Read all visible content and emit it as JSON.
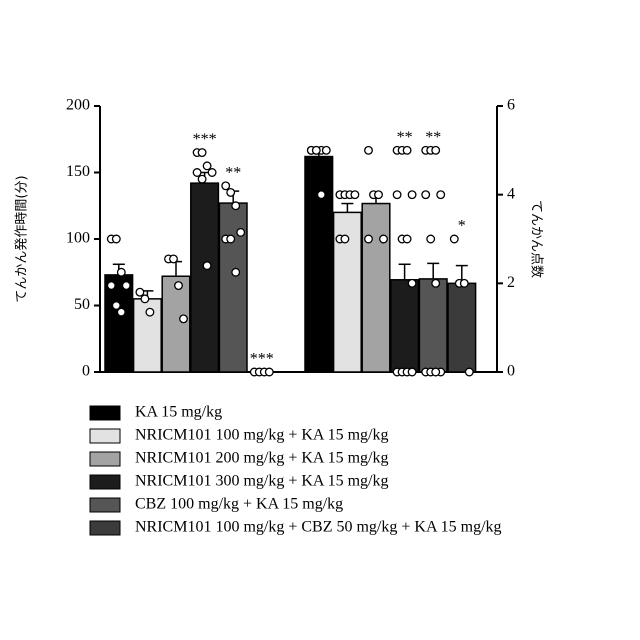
{
  "chart_data": {
    "type": "bar",
    "ylabel": "てんかん発作時間(分)",
    "y2label": "てんかん点数",
    "categories": [
      null,
      null
    ],
    "axes": [
      "y",
      "y2"
    ],
    "ylim": [
      0,
      200
    ],
    "yticks": [
      0,
      50,
      100,
      150,
      200
    ],
    "y2lim": [
      0,
      6
    ],
    "y2ticks": [
      0,
      2,
      4,
      6
    ],
    "series": [
      {
        "name": "KA 15 mg/kg",
        "color": "#000000",
        "values": [
          73,
          4.86
        ],
        "errors": [
          8,
          0.1
        ],
        "annotations": [
          null,
          null
        ],
        "points": [
          [
            100,
            100,
            75,
            65,
            65,
            50,
            45
          ],
          [
            5,
            5,
            5,
            5,
            5,
            5,
            4
          ]
        ]
      },
      {
        "name": "NRICM101 100 mg/kg + KA 15 mg/kg",
        "color": "#e2e2e2",
        "values": [
          55,
          3.6
        ],
        "errors": [
          6,
          0.2
        ],
        "annotations": [
          null,
          null
        ],
        "points": [
          [
            60,
            55,
            45
          ],
          [
            4,
            4,
            4,
            4,
            3,
            3
          ]
        ]
      },
      {
        "name": "NRICM101 200 mg/kg + KA 15 mg/kg",
        "color": "#a3a3a3",
        "values": [
          72,
          3.8
        ],
        "errors": [
          11,
          0.2
        ],
        "annotations": [
          null,
          null
        ],
        "points": [
          [
            85,
            85,
            65,
            40
          ],
          [
            5,
            4,
            4,
            3,
            3
          ]
        ]
      },
      {
        "name": "NRICM101 300 mg/kg + KA 15 mg/kg",
        "color": "#1c1c1c",
        "values": [
          142,
          2.08
        ],
        "errors": [
          8,
          0.35
        ],
        "annotations": [
          "***",
          "**"
        ],
        "points": [
          [
            165,
            165,
            155,
            150,
            150,
            145,
            80
          ],
          [
            5,
            5,
            5,
            4,
            4,
            3,
            3,
            2,
            0,
            0,
            0,
            0
          ]
        ]
      },
      {
        "name": "CBZ 100 mg/kg + KA 15 mg/kg",
        "color": "#555555",
        "values": [
          127,
          2.1
        ],
        "errors": [
          9,
          0.35
        ],
        "annotations": [
          "**",
          "**"
        ],
        "points": [
          [
            140,
            135,
            125,
            105,
            100,
            100,
            75
          ],
          [
            5,
            5,
            5,
            4,
            4,
            3,
            2,
            0,
            0,
            0,
            0
          ]
        ]
      },
      {
        "name": "NRICM101 100 mg/kg + CBZ 50 mg/kg + KA 15 mg/kg",
        "color": "#3b3b3b",
        "values": [
          0,
          2.0
        ],
        "errors": [
          0,
          0.4
        ],
        "annotations": [
          "***",
          "*"
        ],
        "points": [
          [
            0,
            0,
            0,
            0
          ],
          [
            3,
            2,
            2,
            0
          ]
        ]
      }
    ]
  }
}
